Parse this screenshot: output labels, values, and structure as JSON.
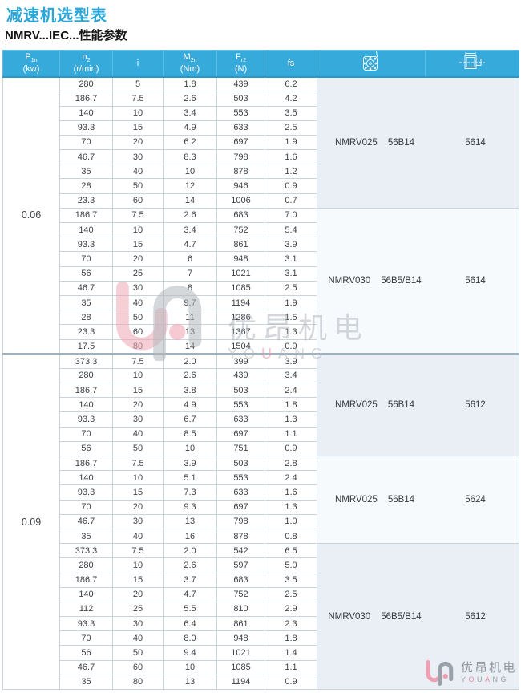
{
  "page": {
    "title": "减速机选型表",
    "subtitle": "NMRV...IEC...性能参数"
  },
  "table": {
    "headers": [
      {
        "label": "P",
        "sub": "1n",
        "unit": "(kw)"
      },
      {
        "label": "n",
        "sub": "2",
        "unit": "(r/min)"
      },
      {
        "label": "i",
        "sub": "",
        "unit": ""
      },
      {
        "label": "M",
        "sub": "2n",
        "unit": "(Nm)"
      },
      {
        "label": "F",
        "sub": "r2",
        "unit": "(N)"
      },
      {
        "label": "fs",
        "sub": "",
        "unit": ""
      },
      {
        "icon": "worm-gearbox-front-icon"
      },
      {
        "icon": "motor-dimension-icon"
      }
    ],
    "sections": [
      {
        "power": "0.06",
        "blocks": [
          {
            "model": "NMRV025",
            "flange": "56B14",
            "code": "5614",
            "rows": [
              [
                "280",
                "5",
                "1.8",
                "439",
                "6.2"
              ],
              [
                "186.7",
                "7.5",
                "2.6",
                "503",
                "4.2"
              ],
              [
                "140",
                "10",
                "3.4",
                "553",
                "3.5"
              ],
              [
                "93.3",
                "15",
                "4.9",
                "633",
                "2.5"
              ],
              [
                "70",
                "20",
                "6.2",
                "697",
                "1.9"
              ],
              [
                "46.7",
                "30",
                "8.3",
                "798",
                "1.6"
              ],
              [
                "35",
                "40",
                "10",
                "878",
                "1.2"
              ],
              [
                "28",
                "50",
                "12",
                "946",
                "0.9"
              ],
              [
                "23.3",
                "60",
                "14",
                "1006",
                "0.7"
              ]
            ]
          },
          {
            "model": "NMRV030",
            "flange": "56B5/B14",
            "code": "5614",
            "rows": [
              [
                "186.7",
                "7.5",
                "2.6",
                "683",
                "7.0"
              ],
              [
                "140",
                "10",
                "3.4",
                "752",
                "5.4"
              ],
              [
                "93.3",
                "15",
                "4.7",
                "861",
                "3.9"
              ],
              [
                "70",
                "20",
                "6",
                "948",
                "3.1"
              ],
              [
                "56",
                "25",
                "7",
                "1021",
                "3.1"
              ],
              [
                "46.7",
                "30",
                "8",
                "1085",
                "2.5"
              ],
              [
                "35",
                "40",
                "9.7",
                "1194",
                "1.9"
              ],
              [
                "28",
                "50",
                "11",
                "1286",
                "1.5"
              ],
              [
                "23.3",
                "60",
                "13",
                "1367",
                "1.3"
              ],
              [
                "17.5",
                "80",
                "14",
                "1504",
                "0.9"
              ]
            ]
          }
        ]
      },
      {
        "power": "0.09",
        "blocks": [
          {
            "model": "NMRV025",
            "flange": "56B14",
            "code": "5612",
            "rows": [
              [
                "373.3",
                "7.5",
                "2.0",
                "399",
                "3.9"
              ],
              [
                "280",
                "10",
                "2.6",
                "439",
                "3.4"
              ],
              [
                "186.7",
                "15",
                "3.8",
                "503",
                "2.4"
              ],
              [
                "140",
                "20",
                "4.9",
                "553",
                "1.8"
              ],
              [
                "93.3",
                "30",
                "6.7",
                "633",
                "1.3"
              ],
              [
                "70",
                "40",
                "8.5",
                "697",
                "1.1"
              ],
              [
                "56",
                "50",
                "10",
                "751",
                "0.9"
              ]
            ]
          },
          {
            "model": "NMRV025",
            "flange": "56B14",
            "code": "5624",
            "rows": [
              [
                "186.7",
                "7.5",
                "3.9",
                "503",
                "2.8"
              ],
              [
                "140",
                "10",
                "5.1",
                "553",
                "2.4"
              ],
              [
                "93.3",
                "15",
                "7.3",
                "633",
                "1.6"
              ],
              [
                "70",
                "20",
                "9.3",
                "697",
                "1.3"
              ],
              [
                "46.7",
                "30",
                "13",
                "798",
                "1.0"
              ],
              [
                "35",
                "40",
                "16",
                "878",
                "0.8"
              ]
            ]
          },
          {
            "model": "NMRV030",
            "flange": "56B5/B14",
            "code": "5612",
            "rows": [
              [
                "373.3",
                "7.5",
                "2.0",
                "542",
                "6.5"
              ],
              [
                "280",
                "10",
                "2.6",
                "597",
                "5.0"
              ],
              [
                "186.7",
                "15",
                "3.7",
                "683",
                "3.5"
              ],
              [
                "140",
                "20",
                "4.7",
                "752",
                "2.5"
              ],
              [
                "112",
                "25",
                "5.5",
                "810",
                "2.9"
              ],
              [
                "93.3",
                "30",
                "6.4",
                "861",
                "2.3"
              ],
              [
                "70",
                "40",
                "8.0",
                "948",
                "1.8"
              ],
              [
                "56",
                "50",
                "9.4",
                "1021",
                "1.4"
              ],
              [
                "46.7",
                "60",
                "10",
                "1085",
                "1.1"
              ],
              [
                "35",
                "80",
                "13",
                "1194",
                "0.9"
              ]
            ]
          }
        ]
      }
    ]
  },
  "watermark": {
    "cn": "优昂机电",
    "en": "YOUANG",
    "en_pink": [
      "U"
    ]
  },
  "logo": {
    "cn": "优昂机电",
    "en": "YOUANG",
    "en_pink": [
      "O",
      "A"
    ]
  },
  "colors": {
    "header_bg": "#35aadb",
    "title_text": "#2ba6d8",
    "tint_cell_bg": "#e9eff5",
    "plain_cell_bg": "#f7fafc",
    "grid_border": "#c9d3db",
    "logo_pink": "#ee8ba2",
    "logo_grey": "#9aa2a9"
  }
}
